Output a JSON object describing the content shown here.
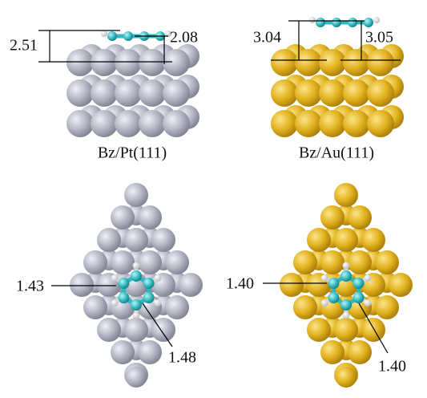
{
  "panels": [
    {
      "label": "Bz/Pt(111)",
      "side_view": {
        "distances": [
          "2.51",
          "2.08"
        ]
      },
      "top_view": {
        "bond_lengths": [
          "1.43",
          "1.48"
        ]
      }
    },
    {
      "label": "Bz/Au(111)",
      "side_view": {
        "distances": [
          "3.04",
          "3.05"
        ]
      },
      "top_view": {
        "bond_lengths": [
          "1.40",
          "1.40"
        ]
      }
    }
  ]
}
